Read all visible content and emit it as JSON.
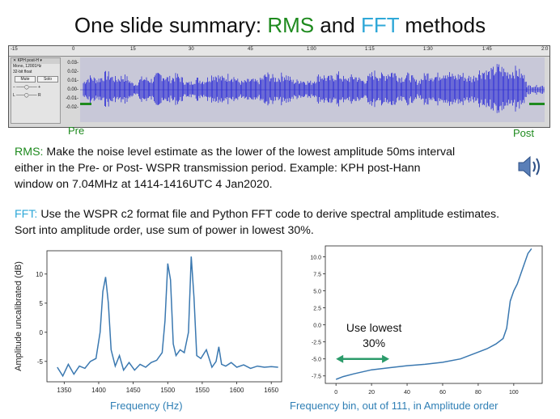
{
  "title": {
    "pre": "One slide summary: ",
    "rms": "RMS",
    "mid": " and ",
    "fft": "FFT",
    "post": " methods"
  },
  "audacity": {
    "ruler_ticks": [
      "-15",
      "0",
      "15",
      "30",
      "45",
      "1:00",
      "1:15",
      "1:30",
      "1:45",
      "2:0"
    ],
    "track_name": "KPH post-H",
    "track_info1": "Mono, 12001Hz",
    "track_info2": "32-bit float",
    "mute": "Mute",
    "solo": "Solo",
    "y_ticks": [
      "0.03-",
      "0.02-",
      "0.01-",
      "0.00-",
      "-0.01-",
      "-0.02-"
    ]
  },
  "labels": {
    "pre": "Pre",
    "post": "Post"
  },
  "rms": {
    "keyword": "RMS:",
    "text1": " Make the noise level estimate as the lower of the lowest amplitude 50ms interval",
    "text2": "either in the Pre- or Post- WSPR transmission period. Example: KPH post-Hann",
    "text3": "window on 7.04MHz at 1414-1416UTC  4 Jan2020."
  },
  "fft": {
    "keyword": "FFT:",
    "text1": " Use the WSPR c2 format file and Python FFT code to derive spectral amplitude estimates.",
    "text2": "Sort into amplitude order, use sum of power in lowest 30%."
  },
  "chart_data": [
    {
      "type": "line",
      "ylabel": "Amplitude uncalibrated (dB)",
      "xlabel": "Frequency (Hz)",
      "xlim": [
        1325,
        1665
      ],
      "ylim": [
        -8.5,
        14
      ],
      "xticks": [
        1350,
        1400,
        1450,
        1500,
        1550,
        1600,
        1650
      ],
      "yticks": [
        -5,
        0,
        5,
        10
      ],
      "x": [
        1340,
        1348,
        1356,
        1364,
        1372,
        1380,
        1388,
        1396,
        1402,
        1406,
        1410,
        1414,
        1418,
        1424,
        1430,
        1436,
        1444,
        1452,
        1460,
        1468,
        1476,
        1484,
        1492,
        1496,
        1500,
        1504,
        1508,
        1512,
        1518,
        1524,
        1530,
        1534,
        1538,
        1542,
        1548,
        1556,
        1564,
        1570,
        1574,
        1578,
        1584,
        1592,
        1600,
        1610,
        1620,
        1630,
        1640,
        1650,
        1660
      ],
      "y": [
        -6,
        -7.5,
        -5.5,
        -7.2,
        -5.8,
        -6.2,
        -5.0,
        -4.5,
        0,
        7,
        9.5,
        5,
        -3,
        -5.8,
        -4,
        -6.5,
        -5.2,
        -6.5,
        -5.5,
        -6,
        -5.2,
        -4.8,
        -3.5,
        2,
        11.8,
        9,
        -2,
        -4,
        -3,
        -3.5,
        0,
        13,
        6,
        -4,
        -4.5,
        -3,
        -6,
        -5,
        -2.5,
        -5.5,
        -5.8,
        -5.2,
        -6,
        -5.6,
        -6.2,
        -5.8,
        -6,
        -5.9,
        -6
      ]
    },
    {
      "type": "line",
      "xlabel": "Frequency bin, out of 111, in Amplitude order",
      "xlim": [
        -6,
        116
      ],
      "ylim": [
        -8.6,
        11.6
      ],
      "xticks": [
        0,
        20,
        40,
        60,
        80,
        100
      ],
      "yticks": [
        -7.5,
        -5.0,
        -2.5,
        0.0,
        2.5,
        5.0,
        7.5,
        10.0
      ],
      "x": [
        0,
        4,
        10,
        20,
        30,
        40,
        50,
        60,
        70,
        80,
        85,
        90,
        94,
        96,
        97,
        98,
        100,
        102,
        104,
        106,
        108,
        110
      ],
      "y": [
        -8,
        -7.6,
        -7.2,
        -6.6,
        -6.3,
        -6.0,
        -5.8,
        -5.5,
        -5.0,
        -4.0,
        -3.5,
        -2.8,
        -2.0,
        -0.5,
        1.5,
        3.5,
        5.0,
        6.0,
        7.5,
        9.0,
        10.5,
        11.2
      ],
      "annotation": "Use lowest",
      "annotation2": "30%",
      "arrow_from": 0,
      "arrow_to": 30,
      "arrow_y": -5.0
    }
  ],
  "colors": {
    "rms": "#1e8a1e",
    "fft": "#2fa8d8",
    "line": "#3a78b0",
    "wave": "#2b2bd6"
  }
}
